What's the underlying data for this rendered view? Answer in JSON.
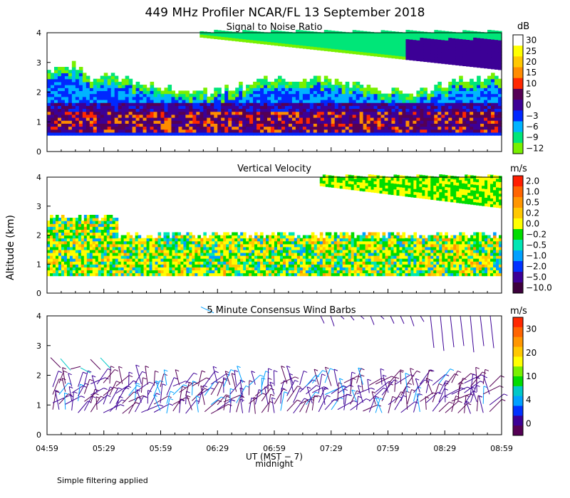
{
  "title": "449 MHz Profiler NCAR/FL 13 September 2018",
  "footnote": "Simple filtering applied",
  "shared_axes": {
    "ylabel": "Altitude (km)",
    "xlabel": "UT (MST − 7)",
    "xlabel_note": "midnight",
    "x_ticks": [
      "04:59",
      "05:29",
      "05:59",
      "06:29",
      "06:59",
      "07:29",
      "07:59",
      "08:29",
      "08:59"
    ],
    "y_ticks": [
      "0",
      "1",
      "2",
      "3",
      "4"
    ]
  },
  "chart_data": [
    {
      "type": "heatmap",
      "title": "Signal to Noise Ratio",
      "unit": "dB",
      "xlim": [
        "04:59",
        "08:59"
      ],
      "ylim": [
        0,
        4
      ],
      "colorbar": {
        "labels": [
          "30",
          "25",
          "20",
          "15",
          "10",
          "5",
          "0",
          "−3",
          "−6",
          "−9",
          "−12"
        ],
        "colors": [
          "#ffffff",
          "#ffff00",
          "#ffc800",
          "#ff8c00",
          "#ff2800",
          "#550055",
          "#3c0096",
          "#0028ff",
          "#00b4ff",
          "#00e678",
          "#78f000"
        ]
      },
      "rows": [
        {
          "altitude_km": 0.55,
          "lo_hi_dB": [
            -3,
            0
          ]
        },
        {
          "altitude_km": 1.05,
          "lo_hi_dB": [
            5,
            15
          ]
        },
        {
          "altitude_km": 1.5,
          "lo_hi_dB": [
            0,
            5
          ]
        },
        {
          "altitude_km": 1.9,
          "lo_hi_dB": [
            -6,
            0
          ]
        },
        {
          "altitude_km": 2.3,
          "lo_hi_dB": [
            -12,
            -6
          ]
        },
        {
          "altitude_km": 3.5,
          "lo_hi_dB": [
            -12,
            -3
          ]
        }
      ]
    },
    {
      "type": "heatmap",
      "title": "Vertical Velocity",
      "unit": "m/s",
      "xlim": [
        "04:59",
        "08:59"
      ],
      "ylim": [
        0,
        4
      ],
      "colorbar": {
        "labels": [
          "2.0",
          "1.0",
          "0.5",
          "0.2",
          "0.0",
          "−0.2",
          "−0.5",
          "−1.0",
          "−2.0",
          "−5.0",
          "−10.0"
        ],
        "colors": [
          "#ff1e00",
          "#ff6400",
          "#ff9600",
          "#ffc800",
          "#ffff00",
          "#00dc00",
          "#00e6b4",
          "#00a0ff",
          "#0032ff",
          "#3c0096",
          "#3c003c"
        ]
      },
      "rows": [
        {
          "altitude_km": 0.7,
          "range_ms": [
            -0.2,
            0.5
          ]
        },
        {
          "altitude_km": 1.3,
          "range_ms": [
            -0.5,
            0.5
          ]
        },
        {
          "altitude_km": 2.0,
          "range_ms": [
            -1.0,
            0.5
          ]
        },
        {
          "altitude_km": 3.8,
          "range_ms": [
            -0.2,
            0.2
          ]
        }
      ]
    },
    {
      "type": "scatter",
      "title": "5 Minute Consensus Wind Barbs",
      "unit": "m/s",
      "xlim": [
        "04:59",
        "08:59"
      ],
      "ylim": [
        0,
        4
      ],
      "colorbar": {
        "labels": [
          "30",
          "20",
          "10",
          "4",
          "0"
        ],
        "colors": [
          "#ff2800",
          "#ff6400",
          "#ff9600",
          "#ffc800",
          "#ffff00",
          "#78f000",
          "#00dc00",
          "#00c8c8",
          "#00a0ff",
          "#0032ff",
          "#3c0096",
          "#550055"
        ]
      },
      "barb_layers": [
        {
          "altitude_km": 0.7,
          "speed_ms": 2
        },
        {
          "altitude_km": 1.0,
          "speed_ms": 3
        },
        {
          "altitude_km": 1.5,
          "speed_ms": 4
        },
        {
          "altitude_km": 1.6,
          "speed_ms": 8
        },
        {
          "altitude_km": 2.2,
          "speed_ms": 6
        },
        {
          "altitude_km": 2.6,
          "speed_ms": 9
        },
        {
          "altitude_km": 3.3,
          "speed_ms": 3
        },
        {
          "altitude_km": 3.8,
          "speed_ms": 4
        }
      ]
    }
  ]
}
